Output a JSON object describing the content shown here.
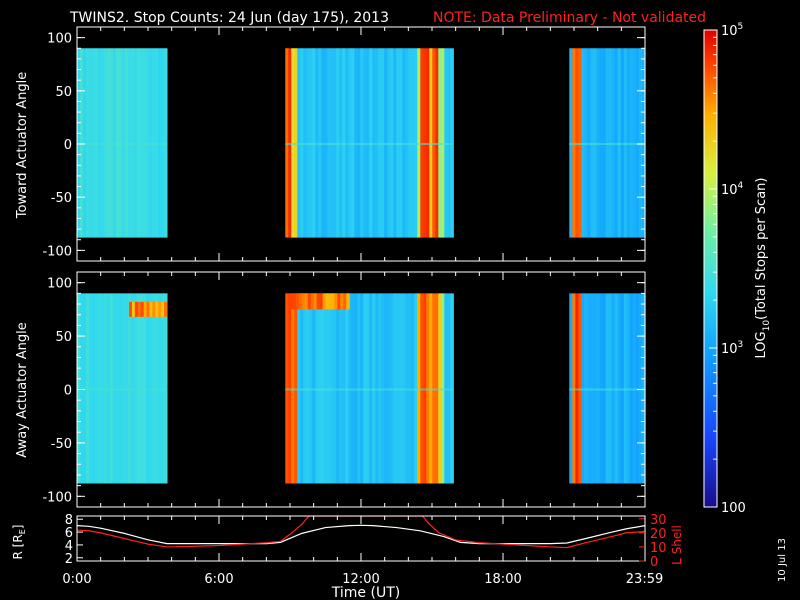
{
  "title": {
    "main": "TWINS2. Stop Counts: 24 Jun (day 175), 2013",
    "note": "NOTE: Data Preliminary - Not validated",
    "note_color": "#ff2020"
  },
  "footer_date": "10 Jul 13",
  "chart_data": [
    {
      "type": "heatmap",
      "panel": "toward",
      "ylabel": "Toward Actuator Angle",
      "ylim": [
        -110,
        110
      ],
      "yticks": [
        "100",
        "50",
        "0",
        "-50",
        "-100"
      ],
      "ytick_values": [
        100,
        50,
        0,
        -50,
        -100
      ],
      "xlim_hours": [
        0,
        24
      ],
      "y_extent": [
        -88,
        90
      ],
      "data_intervals_hours": [
        [
          0.0,
          3.8
        ],
        [
          8.8,
          15.9
        ],
        [
          20.8,
          24.0
        ]
      ],
      "bright_bands_hours": [
        [
          8.85,
          9.0
        ],
        [
          14.6,
          14.75
        ],
        [
          15.05,
          15.2
        ],
        [
          21.0,
          21.15
        ]
      ],
      "typical_log10_counts": 3.0,
      "colorbar": {
        "label": "LOG10(Total Stops per Scan)",
        "label_base": "LOG",
        "label_sub": "10",
        "label_rest": "(Total Stops per Scan)",
        "log_min": 2,
        "log_max": 5,
        "ticks": [
          {
            "value": 5,
            "base": "10",
            "exp": "5"
          },
          {
            "value": 4,
            "base": "10",
            "exp": "4"
          },
          {
            "value": 3,
            "base": "10",
            "exp": "3"
          },
          {
            "value": 2,
            "base": "100",
            "exp": ""
          }
        ]
      }
    },
    {
      "type": "heatmap",
      "panel": "away",
      "ylabel": "Away Actuator Angle",
      "ylim": [
        -110,
        110
      ],
      "yticks": [
        "100",
        "50",
        "0",
        "-50",
        "-100"
      ],
      "ytick_values": [
        100,
        50,
        0,
        -50,
        -100
      ],
      "xlim_hours": [
        0,
        24
      ],
      "y_extent": [
        -88,
        90
      ],
      "data_intervals_hours": [
        [
          0.0,
          3.8
        ],
        [
          8.8,
          15.9
        ],
        [
          20.8,
          24.0
        ]
      ],
      "hot_region": {
        "hours": [
          2.2,
          3.8
        ],
        "angles": [
          68,
          82
        ]
      },
      "hot_region_2": {
        "hours": [
          9.0,
          11.5
        ],
        "angles": [
          75,
          90
        ]
      }
    },
    {
      "type": "line",
      "panel": "ephemeris",
      "xlabel": "Time (UT)",
      "xticks": [
        "0:00",
        "6:00",
        "12:00",
        "18:00",
        "23:59"
      ],
      "xtick_hours": [
        0,
        6,
        12,
        18,
        23.98
      ],
      "ylabel_left": {
        "base": "R [R",
        "sub": "E",
        "close": "]"
      },
      "ylabel_right": "L Shell",
      "yticks_left": [
        "8",
        "6",
        "4",
        "2"
      ],
      "ytick_left_values": [
        8,
        6,
        4,
        2
      ],
      "yticks_right": [
        "30",
        "20",
        "10",
        "0"
      ],
      "ytick_right_values": [
        30,
        20,
        10,
        0
      ],
      "ylim_left": [
        1.5,
        8.5
      ],
      "ylim_right": [
        0,
        32
      ],
      "series": [
        {
          "name": "R",
          "color": "#ffffff",
          "axis": "left",
          "x": [
            0,
            0.5,
            1,
            2,
            3,
            3.8,
            5,
            6,
            7,
            8,
            8.6,
            9.5,
            10.5,
            11.5,
            12,
            12.5,
            13.5,
            14.5,
            15.5,
            16.2,
            17,
            18,
            19,
            20,
            20.7,
            21.5,
            22.5,
            23.2,
            24
          ],
          "y": [
            7.0,
            6.9,
            6.6,
            5.8,
            4.8,
            4.2,
            4.2,
            4.2,
            4.2,
            4.2,
            4.4,
            5.8,
            6.7,
            7.0,
            7.05,
            7.0,
            6.7,
            6.2,
            5.3,
            4.4,
            4.2,
            4.2,
            4.2,
            4.2,
            4.3,
            5.0,
            5.9,
            6.5,
            7.0
          ]
        },
        {
          "name": "L Shell",
          "color": "#ff2020",
          "axis": "right",
          "x": [
            0,
            0.5,
            1,
            2,
            3,
            3.8,
            5,
            6,
            7,
            8,
            8.6,
            9.0,
            9.5,
            9.8,
            14.6,
            14.9,
            15.3,
            16.0,
            17,
            18,
            19,
            20,
            20.7,
            21.5,
            22.5,
            23.2,
            24
          ],
          "y": [
            22,
            21.5,
            20,
            16,
            12,
            10,
            10.5,
            11,
            12,
            13,
            14,
            19,
            26,
            32,
            32,
            26,
            20,
            15,
            13,
            12,
            11,
            10,
            9.5,
            13,
            17,
            20,
            21
          ]
        }
      ]
    }
  ]
}
